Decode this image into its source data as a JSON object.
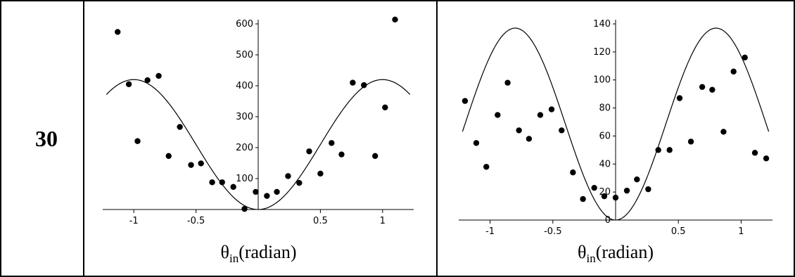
{
  "table": {
    "row_label": "30"
  },
  "chart_data": [
    {
      "type": "scatter",
      "xlabel": {
        "symbol": "θ",
        "sub": "in",
        "rest": "(radian)"
      },
      "xlim": [
        -1.25,
        1.25
      ],
      "ylim": [
        0,
        630
      ],
      "xticks": [
        -1,
        -0.5,
        0.5,
        1
      ],
      "xtick_labels": [
        "-1",
        "-0.5",
        "0.5",
        "1"
      ],
      "yticks": [
        100,
        200,
        300,
        400,
        500,
        600
      ],
      "ytick_labels": [
        "100",
        "200",
        "300",
        "400",
        "500",
        "600"
      ],
      "points": {
        "x": [
          -1.13,
          -1.04,
          -0.97,
          -0.89,
          -0.8,
          -0.72,
          -0.63,
          -0.54,
          -0.46,
          -0.37,
          -0.29,
          -0.2,
          -0.11,
          -0.02,
          0.07,
          0.15,
          0.24,
          0.33,
          0.41,
          0.5,
          0.59,
          0.67,
          0.76,
          0.85,
          0.94,
          1.02,
          1.1
        ],
        "y": [
          574,
          405,
          221,
          418,
          432,
          173,
          267,
          144,
          149,
          88,
          88,
          73,
          2,
          57,
          44,
          57,
          108,
          86,
          188,
          116,
          215,
          178,
          410,
          402,
          173,
          330,
          614
        ]
      },
      "curve": {
        "amplitude": 420,
        "period_half": 2.0,
        "x_range": [
          -1.22,
          1.22
        ]
      }
    },
    {
      "type": "scatter",
      "xlabel": {
        "symbol": "θ",
        "sub": "in",
        "rest": "(radian)"
      },
      "xlim": [
        -1.25,
        1.25
      ],
      "ylim": [
        0,
        140
      ],
      "xticks": [
        -1,
        -0.5,
        0.5,
        1
      ],
      "xtick_labels": [
        "-1",
        "-0.5",
        "0.5",
        "1"
      ],
      "yticks": [
        0,
        20,
        40,
        60,
        80,
        100,
        120,
        140
      ],
      "ytick_labels": [
        "0",
        "20",
        "40",
        "60",
        "80",
        "100",
        "120",
        "140"
      ],
      "points": {
        "x": [
          -1.2,
          -1.11,
          -1.03,
          -0.94,
          -0.86,
          -0.77,
          -0.69,
          -0.6,
          -0.51,
          -0.43,
          -0.34,
          -0.26,
          -0.17,
          -0.09,
          0.0,
          0.09,
          0.17,
          0.26,
          0.34,
          0.43,
          0.51,
          0.6,
          0.69,
          0.77,
          0.86,
          0.94,
          1.03,
          1.11,
          1.2
        ],
        "y": [
          85,
          55,
          38,
          75,
          98,
          64,
          58,
          75,
          79,
          64,
          34,
          15,
          23,
          17,
          16,
          21,
          29,
          22,
          50,
          50,
          87,
          56,
          95,
          93,
          63,
          106,
          116,
          48,
          44
        ]
      },
      "curve": {
        "amplitude": 137,
        "period_half": 1.6,
        "x_range": [
          -1.22,
          1.22
        ]
      }
    }
  ]
}
